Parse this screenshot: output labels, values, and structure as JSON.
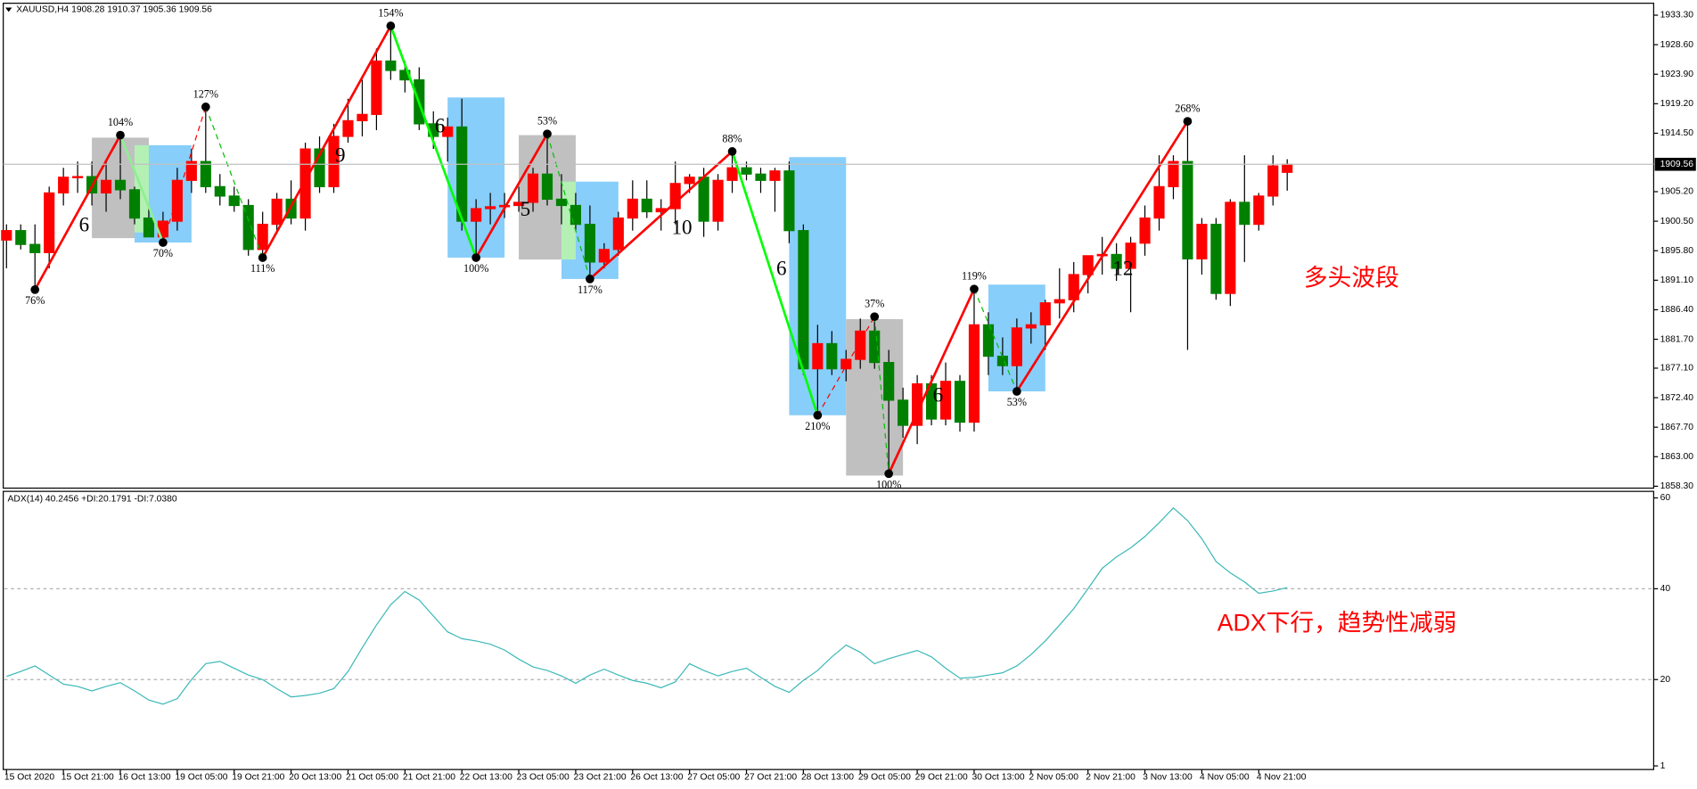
{
  "chart_data": [
    {
      "type": "candlestick",
      "title": "XAUUSD,H4  1908.28 1910.37 1905.36 1909.56",
      "annotations": [
        "多头波段"
      ],
      "categories": [
        "15 Oct 2020",
        null,
        null,
        null,
        "15 Oct 21:00",
        null,
        null,
        null,
        "16 Oct 13:00",
        null,
        null,
        null,
        "19 Oct 05:00",
        null,
        null,
        null,
        "19 Oct 21:00",
        null,
        null,
        null,
        "20 Oct 13:00",
        null,
        null,
        null,
        "21 Oct 05:00",
        null,
        null,
        null,
        "21 Oct 21:00",
        null,
        null,
        null,
        "22 Oct 13:00",
        null,
        null,
        null,
        "23 Oct 05:00",
        null,
        null,
        null,
        "23 Oct 21:00",
        null,
        null,
        null,
        "26 Oct 13:00",
        null,
        null,
        null,
        "27 Oct 05:00",
        null,
        null,
        null,
        "27 Oct 21:00",
        null,
        null,
        null,
        "28 Oct 13:00",
        null,
        null,
        null,
        "29 Oct 05:00",
        null,
        null,
        null,
        "29 Oct 21:00",
        null,
        null,
        null,
        "30 Oct 13:00",
        null,
        null,
        null,
        "2 Nov 05:00",
        null,
        null,
        null,
        "2 Nov 21:00",
        null,
        null,
        null,
        "3 Nov 13:00",
        null,
        null,
        null,
        "4 Nov 05:00",
        null,
        null,
        null,
        "4 Nov 21:00",
        null,
        null
      ],
      "open": [
        1897.5,
        1899,
        1896.8,
        1895.5,
        1905,
        1907.5,
        1907.6,
        1905,
        1907,
        1905.5,
        1901,
        1898,
        1900.5,
        1907,
        1910,
        1906,
        1904.5,
        1903,
        1896,
        1900,
        1904,
        1901,
        1912,
        1906,
        1914,
        1916.5,
        1917.5,
        1926,
        1924.5,
        1923,
        1916,
        1914,
        1915.5,
        1900.5,
        1902.5,
        1902.8,
        1903,
        1903.5,
        1908,
        1904,
        1903,
        1900,
        1894,
        1896,
        1901,
        1904,
        1902,
        1902.5,
        1906.5,
        1907.5,
        1900.5,
        1907,
        1909,
        1908,
        1907,
        1908.5,
        1899,
        1877,
        1881,
        1877,
        1878.5,
        1883,
        1878,
        1872,
        1868,
        1874.6,
        1869,
        1875,
        1868.5,
        1884,
        1879,
        1877.5,
        1883.5,
        1884,
        1887.5,
        1888,
        1892,
        1895,
        1895.2,
        1893,
        1897,
        1901,
        1906,
        1910,
        1894.5,
        1900,
        1889,
        1903.5,
        1900,
        1904.5,
        1908.28
      ],
      "high": [
        1900,
        1900,
        1900,
        1906,
        1909,
        1910,
        1910,
        1910,
        1914.2,
        1906,
        1903,
        1902,
        1909,
        1912,
        1918.7,
        1908,
        1906,
        1904,
        1902,
        1905,
        1907,
        1913,
        1914,
        1916,
        1920,
        1923,
        1928,
        1931.6,
        1926,
        1925,
        1918,
        1917,
        1920,
        1904,
        1905,
        1905,
        1906,
        1909,
        1914.4,
        1908,
        1905,
        1903,
        1897,
        1902,
        1907,
        1907,
        1904,
        1910,
        1908,
        1909,
        1908,
        1911.6,
        1910,
        1909,
        1909,
        1910,
        1900,
        1884,
        1883,
        1880,
        1885,
        1885.3,
        1880,
        1874,
        1876,
        1876,
        1878,
        1876,
        1889.7,
        1886,
        1882,
        1885,
        1886,
        1888,
        1893,
        1894,
        1895,
        1898,
        1897,
        1898,
        1903,
        1911,
        1911,
        1916.4,
        1901,
        1901,
        1904,
        1911,
        1905,
        1911,
        1910.37
      ],
      "low": [
        1893,
        1896,
        1889.6,
        1893,
        1903,
        1905,
        1903,
        1902,
        1904,
        1900,
        1898,
        1897.1,
        1899,
        1905,
        1905,
        1903,
        1902,
        1895,
        1894.7,
        1899,
        1900,
        1899,
        1905,
        1905,
        1913,
        1914,
        1915,
        1923,
        1921,
        1915,
        1912,
        1910,
        1899,
        1894.7,
        1900,
        1901,
        1902,
        1902,
        1903,
        1900,
        1899,
        1891.3,
        1893,
        1895,
        1899,
        1901,
        1899,
        1900,
        1905,
        1898,
        1899,
        1905,
        1907,
        1905,
        1902,
        1897,
        1876,
        1869.6,
        1876,
        1875,
        1877,
        1877,
        1860.3,
        1866,
        1865,
        1868,
        1868,
        1867,
        1867,
        1876,
        1876,
        1873.4,
        1881,
        1880,
        1885,
        1886,
        1889,
        1892,
        1891,
        1886,
        1895,
        1899,
        1904,
        1880,
        1892,
        1888,
        1887,
        1894,
        1899,
        1903,
        1905.36
      ],
      "close": [
        1899,
        1896.8,
        1895.5,
        1905,
        1907.5,
        1907.6,
        1905,
        1907,
        1905.5,
        1901,
        1898,
        1900.5,
        1907,
        1910,
        1906,
        1904.5,
        1903,
        1896,
        1900,
        1904,
        1901,
        1912,
        1906,
        1914,
        1916.5,
        1917.5,
        1926,
        1924.5,
        1923,
        1916,
        1914,
        1915.5,
        1900.5,
        1902.5,
        1902.8,
        1903,
        1903.5,
        1908,
        1904,
        1903,
        1900,
        1894,
        1896,
        1901,
        1904,
        1902,
        1902.5,
        1906.5,
        1907.5,
        1900.5,
        1907,
        1909,
        1908,
        1907,
        1908.5,
        1899,
        1877,
        1881,
        1877,
        1878.5,
        1883,
        1878,
        1872,
        1868,
        1874.6,
        1869,
        1875,
        1868.5,
        1884,
        1879,
        1877.5,
        1883.5,
        1884,
        1887.5,
        1888,
        1892,
        1895,
        1895.2,
        1893,
        1897,
        1901,
        1906,
        1910,
        1894.5,
        1900,
        1889,
        1903.5,
        1900,
        1904.5,
        1909.3,
        1909.56
      ],
      "up_color": "#ff0000",
      "down_color": "#008000",
      "ylim": [
        1858.0,
        1935.2
      ],
      "yticks": [
        {
          "value": 1858.3,
          "label": "1858.30"
        },
        {
          "value": 1863,
          "label": "1863.00"
        },
        {
          "value": 1867.7,
          "label": "1867.70"
        },
        {
          "value": 1872.4,
          "label": "1872.40"
        },
        {
          "value": 1877.1,
          "label": "1877.10"
        },
        {
          "value": 1881.7,
          "label": "1881.70"
        },
        {
          "value": 1886.4,
          "label": "1886.40"
        },
        {
          "value": 1891.1,
          "label": "1891.10"
        },
        {
          "value": 1895.8,
          "label": "1895.80"
        },
        {
          "value": 1900.5,
          "label": "1900.50"
        },
        {
          "value": 1905.2,
          "label": "1905.20"
        },
        {
          "value": 1914.5,
          "label": "1914.50"
        },
        {
          "value": 1919.2,
          "label": "1919.20"
        },
        {
          "value": 1923.9,
          "label": "1923.90"
        },
        {
          "value": 1928.6,
          "label": "1928.60"
        },
        {
          "value": 1933.3,
          "label": "1933.30"
        }
      ],
      "last_price": 1909.56,
      "zones": [
        {
          "from": 6,
          "to": 10,
          "low": 1897.8,
          "high": 1913.8,
          "color": "#c0c0c0"
        },
        {
          "from": 9,
          "to": 13,
          "low": 1897.1,
          "high": 1912.6,
          "color": "#87cefa"
        },
        {
          "from": 9,
          "to": 10,
          "low": 1898.7,
          "high": 1912.6,
          "color": "#b4f0b4"
        },
        {
          "from": 31,
          "to": 35,
          "low": 1894.7,
          "high": 1920.2,
          "color": "#87cefa"
        },
        {
          "from": 36,
          "to": 40,
          "low": 1894.4,
          "high": 1914.2,
          "color": "#c0c0c0"
        },
        {
          "from": 39,
          "to": 43,
          "low": 1891.3,
          "high": 1906.8,
          "color": "#87cefa"
        },
        {
          "from": 39,
          "to": 40,
          "low": 1894.4,
          "high": 1906.8,
          "color": "#b4f0b4"
        },
        {
          "from": 55,
          "to": 59,
          "low": 1869.6,
          "high": 1910.7,
          "color": "#87cefa"
        },
        {
          "from": 59,
          "to": 63,
          "low": 1860.0,
          "high": 1884.9,
          "color": "#c0c0c0"
        },
        {
          "from": 69,
          "to": 73,
          "low": 1873.4,
          "high": 1890.4,
          "color": "#87cefa"
        }
      ],
      "zigzag": [
        {
          "index": 2,
          "price": 1889.6,
          "label": "76%"
        },
        {
          "index": 8,
          "price": 1914.2,
          "label": "104%",
          "color": "#ff0000",
          "dashed": false
        },
        {
          "index": 11,
          "price": 1897.1,
          "label": "70%",
          "color": "#90ee90",
          "dashed": false
        },
        {
          "index": 14,
          "price": 1918.7,
          "label": "127%",
          "color": "#ff0000",
          "dashed": true
        },
        {
          "index": 18,
          "price": 1894.7,
          "label": "111%",
          "color": "#00c000",
          "dashed": true
        },
        {
          "index": 27,
          "price": 1931.6,
          "label": "154%",
          "color": "#ff0000",
          "dashed": false
        },
        {
          "index": 33,
          "price": 1894.7,
          "label": "100%",
          "color": "#00ff00",
          "dashed": false
        },
        {
          "index": 38,
          "price": 1914.4,
          "label": "53%",
          "color": "#ff0000",
          "dashed": false
        },
        {
          "index": 41,
          "price": 1891.3,
          "label": "117%",
          "color": "#00c000",
          "dashed": true
        },
        {
          "index": 51,
          "price": 1911.6,
          "label": "88%",
          "color": "#ff0000",
          "dashed": false
        },
        {
          "index": 57,
          "price": 1869.6,
          "label": "210%",
          "color": "#00ff00",
          "dashed": false
        },
        {
          "index": 61,
          "price": 1885.3,
          "label": "37%",
          "color": "#ff0000",
          "dashed": true
        },
        {
          "index": 62,
          "price": 1860.3,
          "label": "100%",
          "color": "#00c000",
          "dashed": true
        },
        {
          "index": 68,
          "price": 1889.7,
          "label": "119%",
          "color": "#ff0000",
          "dashed": false
        },
        {
          "index": 71,
          "price": 1873.4,
          "label": "53%",
          "color": "#00c000",
          "dashed": true
        },
        {
          "index": 83,
          "price": 1916.4,
          "label": "268%",
          "color": "#ff0000",
          "dashed": false
        }
      ],
      "wave_labels": [
        {
          "index": 5,
          "price": 1899.6,
          "text": "6"
        },
        {
          "index": 30,
          "price": 1915.4,
          "text": "6"
        },
        {
          "index": 23,
          "price": 1910.7,
          "text": "9"
        },
        {
          "index": 36,
          "price": 1902.1,
          "text": "5"
        },
        {
          "index": 47,
          "price": 1899.2,
          "text": "10"
        },
        {
          "index": 54,
          "price": 1892.7,
          "text": "6"
        },
        {
          "index": 65,
          "price": 1872.5,
          "text": "6"
        },
        {
          "index": 78,
          "price": 1892.7,
          "text": "12"
        }
      ]
    },
    {
      "type": "line",
      "title": "ADX(14) 40.2456 +DI:20.1791 -DI:7.0380",
      "annotations": [
        "ADX下行，趋势性减弱"
      ],
      "color": "#3cb8b8",
      "values": [
        20.7,
        21.8,
        23,
        21,
        19,
        18.5,
        17.5,
        18.5,
        19.3,
        17.5,
        15.5,
        14.6,
        15.8,
        20,
        23.5,
        24,
        22.5,
        21,
        20,
        18,
        16.2,
        16.5,
        17,
        18,
        21.8,
        27,
        32,
        36.5,
        39.4,
        37.5,
        34,
        30.5,
        29,
        28.5,
        27.8,
        26.5,
        24.5,
        22.8,
        22,
        20.8,
        19.2,
        21,
        22.3,
        21,
        19.8,
        19.2,
        18.2,
        19.5,
        23.5,
        22,
        20.8,
        21.8,
        22.5,
        20.5,
        18.5,
        17.2,
        19.8,
        22,
        25,
        27.6,
        26,
        23.5,
        24.6,
        25.5,
        26.4,
        25,
        22.5,
        20.3,
        20.5,
        21,
        21.5,
        23,
        25.5,
        28.5,
        32,
        35.6,
        40,
        44.5,
        47,
        49,
        51.5,
        54.5,
        57.8,
        55,
        51,
        46,
        43.5,
        41.5,
        39,
        39.5,
        40.2456
      ],
      "ylim": [
        0.2,
        61.2
      ],
      "yticks": [
        60,
        40,
        20,
        1
      ],
      "levels": [
        40,
        20
      ]
    }
  ]
}
